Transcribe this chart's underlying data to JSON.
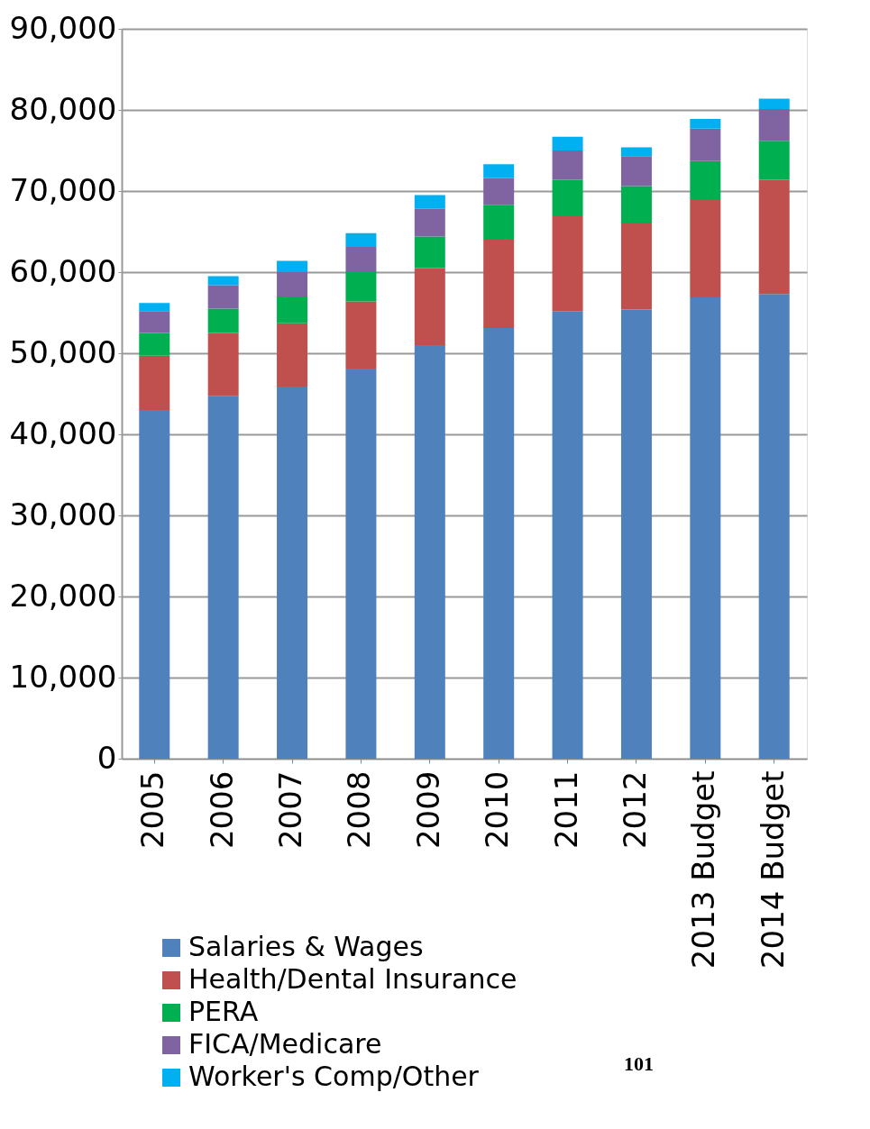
{
  "chart_data": {
    "type": "bar",
    "stacked": true,
    "categories": [
      "2005",
      "2006",
      "2007",
      "2008",
      "2009",
      "2010",
      "2011",
      "2012",
      "2013 Budget",
      "2014 Budget"
    ],
    "series": [
      {
        "name": "Salaries & Wages",
        "color": "#4f81bd",
        "values": [
          43000,
          44700,
          45900,
          48100,
          51000,
          53100,
          55200,
          55400,
          56900,
          57300
        ]
      },
      {
        "name": "Health/Dental Insurance",
        "color": "#c0504d",
        "values": [
          6700,
          7800,
          7800,
          8300,
          9500,
          10900,
          11700,
          10700,
          12100,
          14100
        ]
      },
      {
        "name": "PERA",
        "color": "#00b050",
        "values": [
          2800,
          3000,
          3300,
          3700,
          3900,
          4300,
          4500,
          4500,
          4700,
          4800
        ]
      },
      {
        "name": "FICA/Medicare",
        "color": "#8064a2",
        "values": [
          2700,
          2900,
          3000,
          3000,
          3400,
          3300,
          3600,
          3700,
          4000,
          3900
        ]
      },
      {
        "name": "Worker's Comp/Other",
        "color": "#00b0f0",
        "values": [
          1000,
          1100,
          1400,
          1700,
          1700,
          1700,
          1700,
          1100,
          1200,
          1300
        ]
      }
    ],
    "ylim": [
      0,
      90000
    ],
    "yticks": [
      {
        "value": 0,
        "label": "0"
      },
      {
        "value": 10000,
        "label": "10,000"
      },
      {
        "value": 20000,
        "label": "20,000"
      },
      {
        "value": 30000,
        "label": "30,000"
      },
      {
        "value": 40000,
        "label": "40,000"
      },
      {
        "value": 50000,
        "label": "50,000"
      },
      {
        "value": 60000,
        "label": "60,000"
      },
      {
        "value": 70000,
        "label": "70,000"
      },
      {
        "value": 80000,
        "label": "80,000"
      },
      {
        "value": 90000,
        "label": "90,000"
      }
    ],
    "grid": "y",
    "legend": "bottom left",
    "annotations": [
      "101"
    ]
  }
}
